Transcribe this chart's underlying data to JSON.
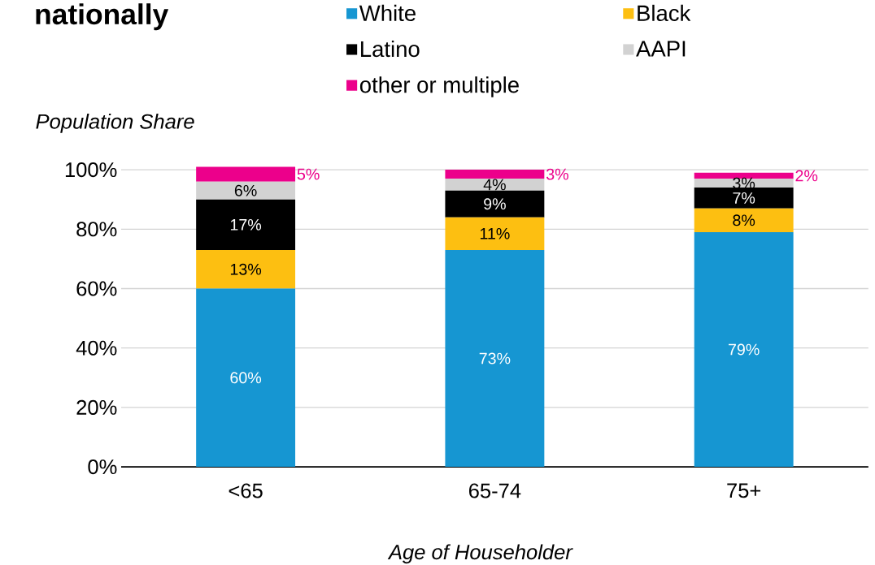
{
  "chart_data": {
    "type": "bar",
    "title": "nationally",
    "xlabel": "Age of Householder",
    "ylabel": "Population Share",
    "categories": [
      "<65",
      "65-74",
      "75+"
    ],
    "stacked": true,
    "series": [
      {
        "name": "White",
        "color": "#1696d2",
        "values": [
          60,
          73,
          79
        ],
        "value_labels": [
          "60%",
          "73%",
          "79%"
        ]
      },
      {
        "name": "Black",
        "color": "#fdbf11",
        "values": [
          13,
          11,
          8
        ],
        "value_labels": [
          "13%",
          "11%",
          "8%"
        ]
      },
      {
        "name": "Latino",
        "color": "#000000",
        "values": [
          17,
          9,
          7
        ],
        "value_labels": [
          "17%",
          "9%",
          "7%"
        ]
      },
      {
        "name": "AAPI",
        "color": "#d2d2d2",
        "values": [
          6,
          4,
          3
        ],
        "value_labels": [
          "6%",
          "4%",
          "3%"
        ]
      },
      {
        "name": "other or multiple",
        "color": "#ec008b",
        "values": [
          5,
          3,
          2
        ],
        "value_labels": [
          "5%",
          "3%",
          "2%"
        ]
      }
    ],
    "ylim": [
      0,
      101
    ],
    "yticks": [
      {
        "value": 0,
        "label": "0%"
      },
      {
        "value": 20,
        "label": "20%"
      },
      {
        "value": 40,
        "label": "40%"
      },
      {
        "value": 60,
        "label": "60%"
      },
      {
        "value": 80,
        "label": "80%"
      },
      {
        "value": 100,
        "label": "100%"
      }
    ],
    "grid": "y",
    "legend": "top"
  }
}
